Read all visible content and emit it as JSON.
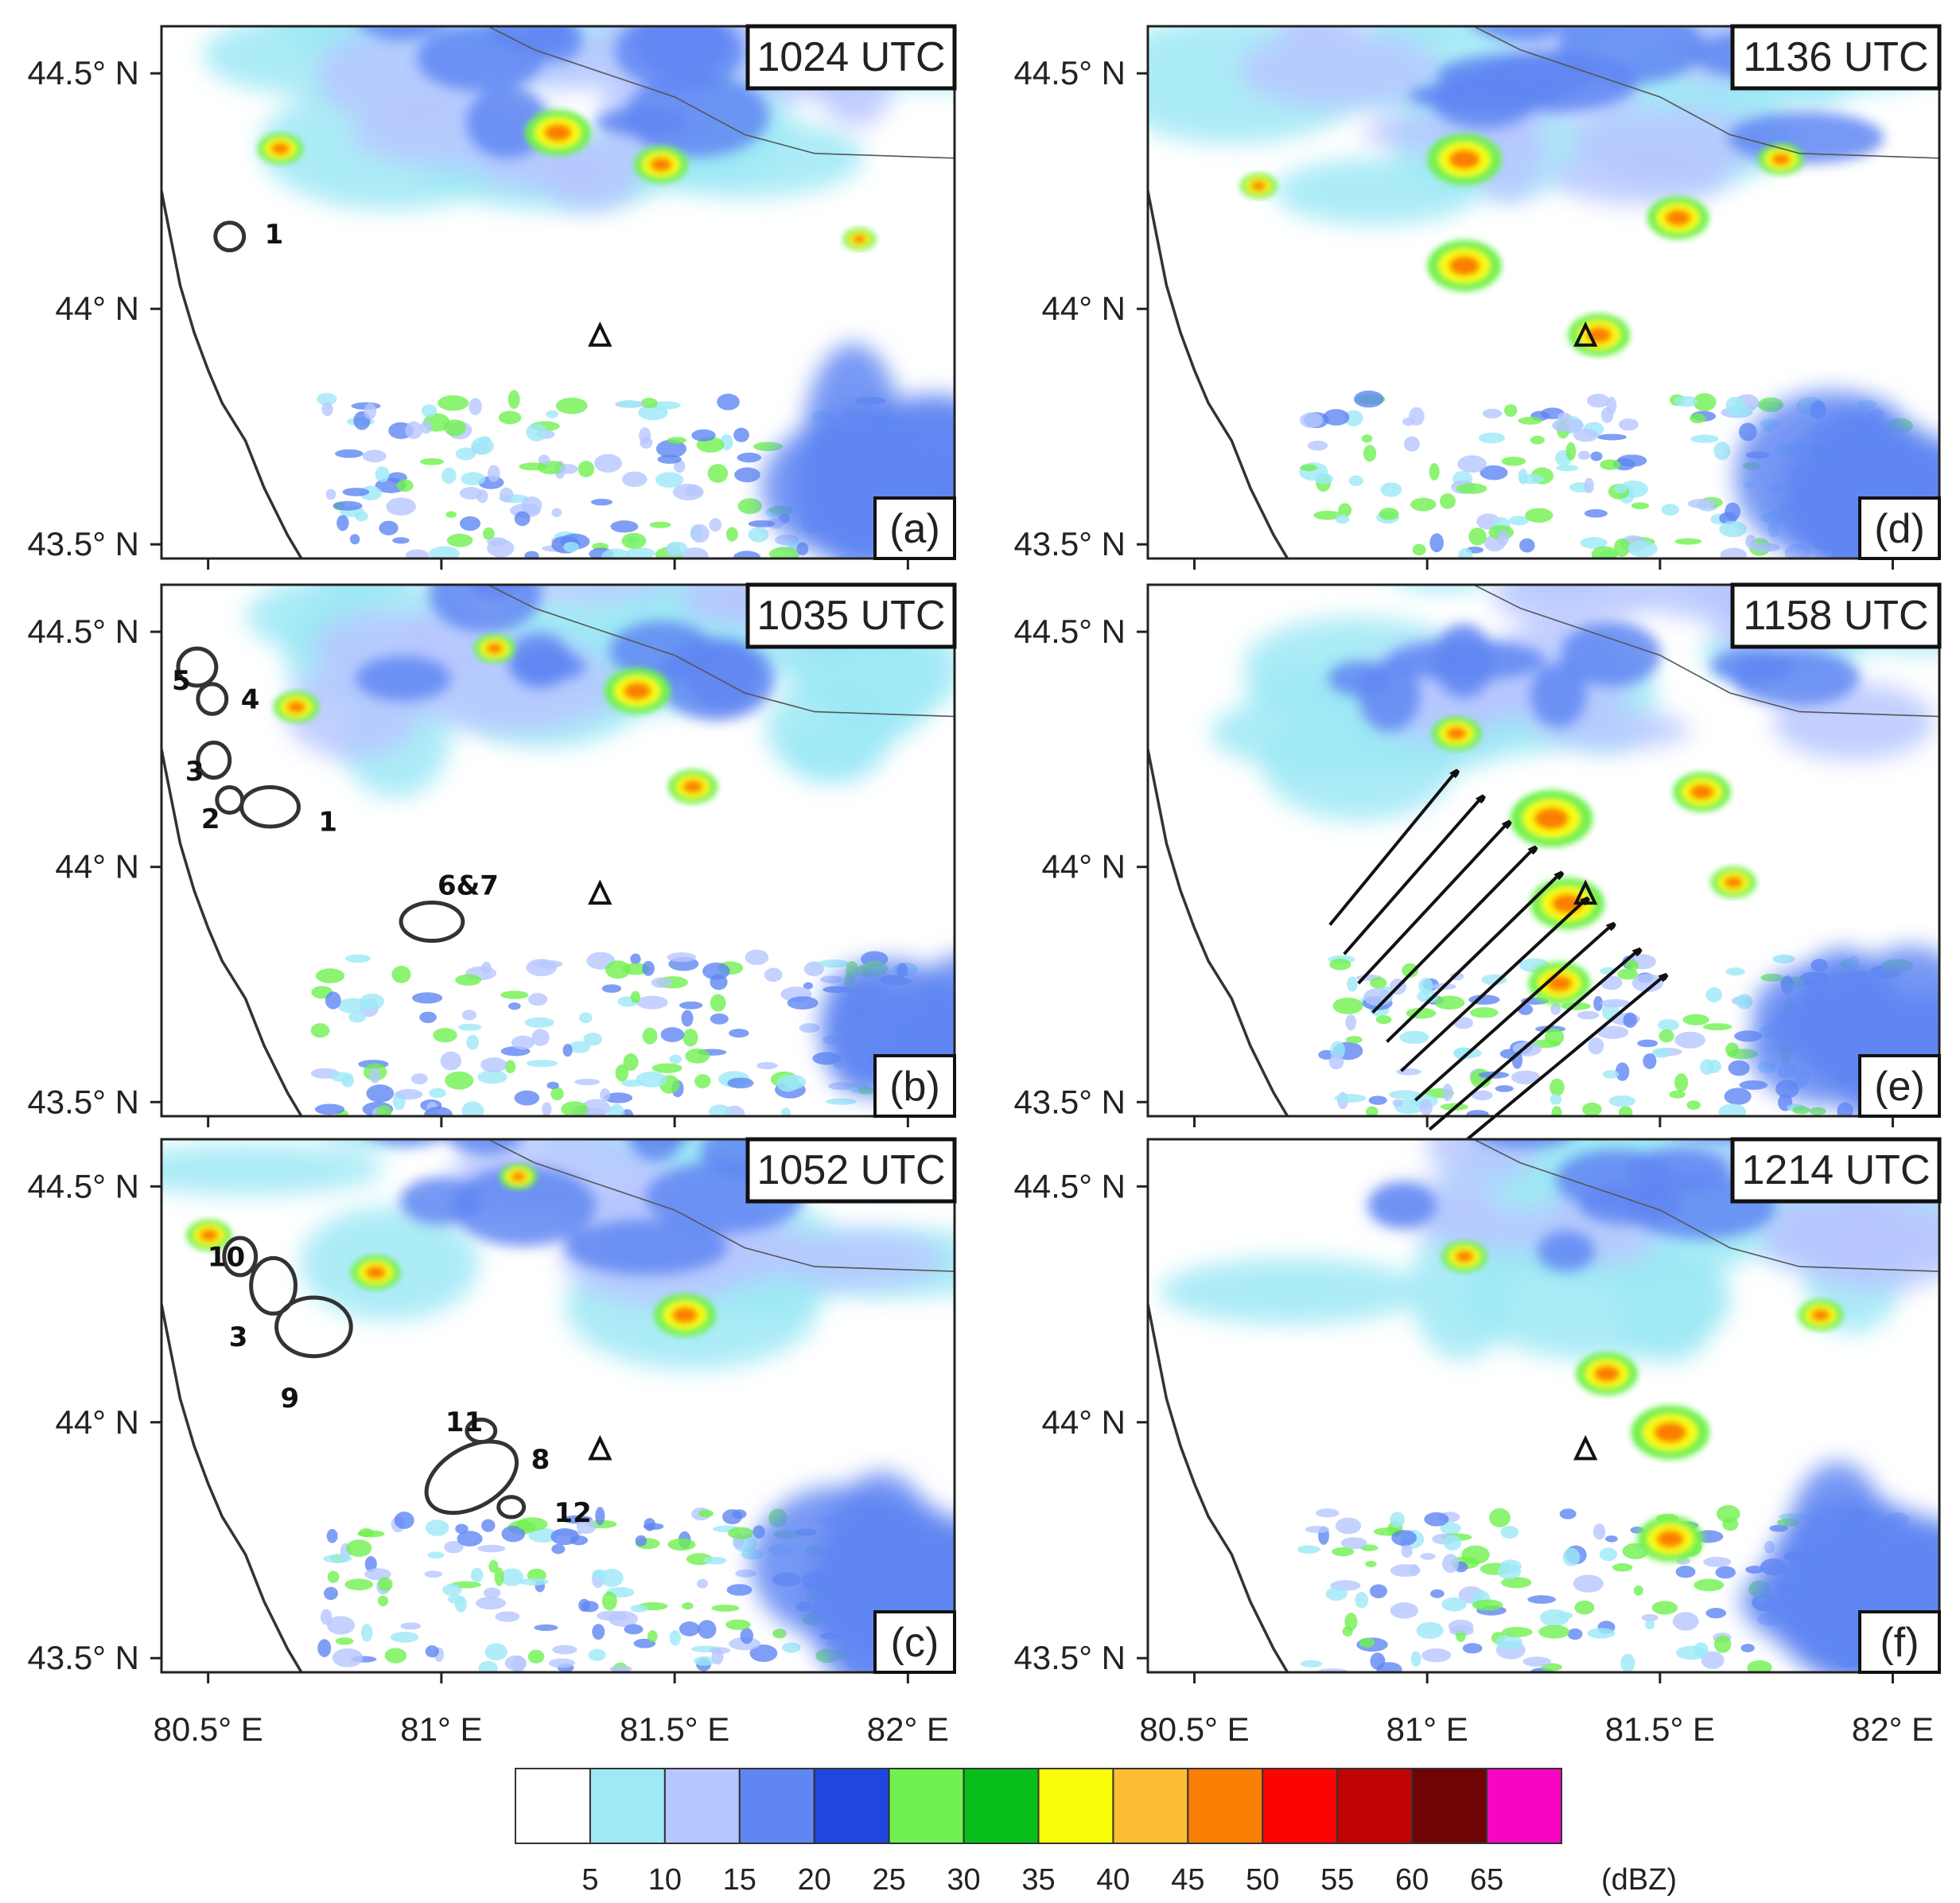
{
  "figure": {
    "panels": [
      {
        "id": "a",
        "time": "1024 UTC",
        "letter": "(a)",
        "cells": [
          {
            "label": "1",
            "ell": [
              0.086,
              0.395,
              0.018,
              0.026,
              0
            ],
            "lbl": [
              0.13,
              0.39
            ]
          }
        ],
        "arrows": false
      },
      {
        "id": "d",
        "time": "1136 UTC",
        "letter": "(d)",
        "cells": [],
        "arrows": false
      },
      {
        "id": "b",
        "time": "1035 UTC",
        "letter": "(b)",
        "cells": [
          {
            "label": "5",
            "ell": [
              0.045,
              0.155,
              0.024,
              0.035,
              0
            ],
            "lbl": [
              0.013,
              0.18
            ]
          },
          {
            "label": "4",
            "ell": [
              0.064,
              0.215,
              0.018,
              0.028,
              0
            ],
            "lbl": [
              0.1,
              0.215
            ]
          },
          {
            "label": "3",
            "ell": [
              0.066,
              0.33,
              0.02,
              0.033,
              0
            ],
            "lbl": [
              0.03,
              0.35
            ]
          },
          {
            "label": "2",
            "ell": [
              0.086,
              0.405,
              0.016,
              0.024,
              0
            ],
            "lbl": [
              0.05,
              0.44
            ]
          },
          {
            "label": "1",
            "ell": [
              0.137,
              0.418,
              0.036,
              0.037,
              0
            ],
            "lbl": [
              0.198,
              0.445
            ]
          },
          {
            "label": "6&7",
            "ell": [
              0.341,
              0.634,
              0.039,
              0.036,
              0
            ],
            "lbl": [
              0.348,
              0.565
            ]
          }
        ],
        "arrows": false
      },
      {
        "id": "e",
        "time": "1158 UTC",
        "letter": "(e)",
        "cells": [],
        "arrows": true
      },
      {
        "id": "c",
        "time": "1052 UTC",
        "letter": "(c)",
        "cells": [
          {
            "label": "10",
            "ell": [
              0.099,
              0.22,
              0.02,
              0.035,
              0
            ],
            "lbl": [
              0.058,
              0.22
            ]
          },
          {
            "label": "3",
            "ell": [
              0.141,
              0.275,
              0.028,
              0.052,
              0
            ],
            "lbl": [
              0.085,
              0.37
            ]
          },
          {
            "label": "9",
            "ell": [
              0.192,
              0.352,
              0.047,
              0.055,
              0
            ],
            "lbl": [
              0.15,
              0.485
            ]
          },
          {
            "label": "11",
            "ell": [
              0.403,
              0.547,
              0.018,
              0.021,
              0
            ],
            "lbl": [
              0.358,
              0.53
            ]
          },
          {
            "label": "8",
            "ell": [
              0.391,
              0.634,
              0.062,
              0.056,
              -30
            ],
            "lbl": [
              0.466,
              0.6
            ]
          },
          {
            "label": "12",
            "ell": [
              0.441,
              0.69,
              0.016,
              0.019,
              0
            ],
            "lbl": [
              0.495,
              0.7
            ]
          }
        ],
        "arrows": false
      },
      {
        "id": "f",
        "time": "1214 UTC",
        "letter": "(f)",
        "cells": [],
        "arrows": false
      }
    ],
    "lat_labels": [
      "44.5°  N",
      "44°  N",
      "43.5°  N"
    ],
    "lon_labels": [
      "80.5°  E",
      "81°  E",
      "81.5°  E",
      "82°  E"
    ],
    "radar_symbol": "Δ",
    "colorbar": {
      "unit": "(dBZ)",
      "ticks": [
        "5",
        "10",
        "15",
        "20",
        "25",
        "30",
        "35",
        "40",
        "45",
        "50",
        "55",
        "60",
        "65"
      ],
      "colors": [
        "#ffffff",
        "#9ee9f6",
        "#b7c7ff",
        "#5f86f2",
        "#1f46de",
        "#6ff14f",
        "#08be1a",
        "#fbfd08",
        "#fbbd34",
        "#fb7e05",
        "#fb0404",
        "#c00303",
        "#6e0404",
        "#f805c4"
      ]
    },
    "stations": {
      "radar": [
        81.34,
        43.94
      ]
    }
  }
}
